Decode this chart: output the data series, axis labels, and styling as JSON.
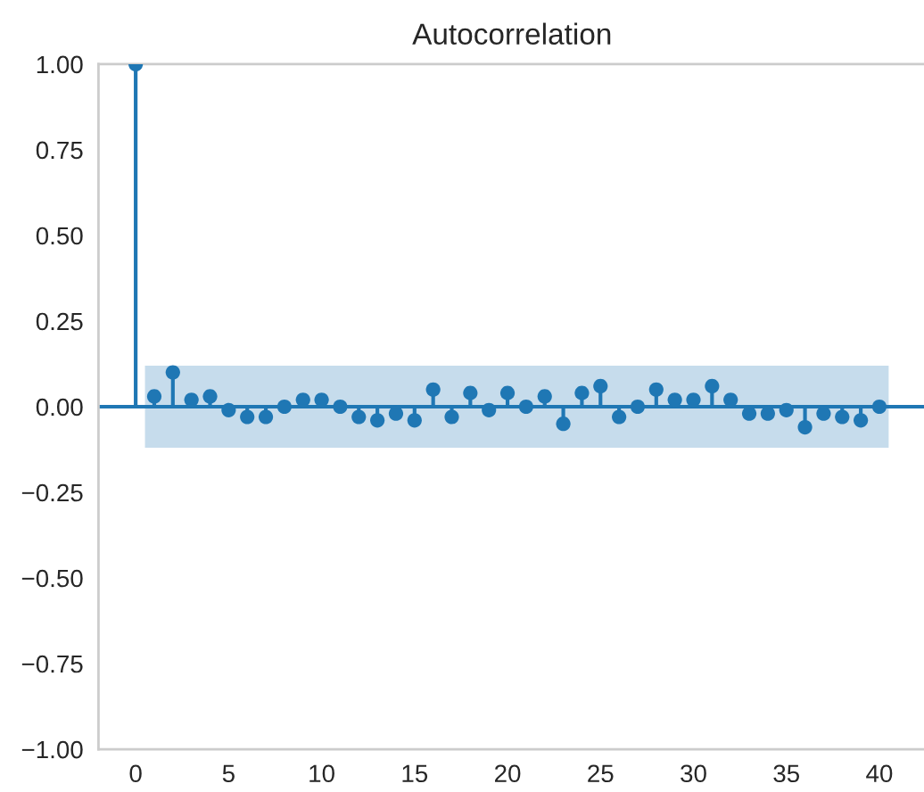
{
  "chart_data": {
    "type": "lollipop",
    "title": "Autocorrelation",
    "x": [
      0,
      1,
      2,
      3,
      4,
      5,
      6,
      7,
      8,
      9,
      10,
      11,
      12,
      13,
      14,
      15,
      16,
      17,
      18,
      19,
      20,
      21,
      22,
      23,
      24,
      25,
      26,
      27,
      28,
      29,
      30,
      31,
      32,
      33,
      34,
      35,
      36,
      37,
      38,
      39,
      40
    ],
    "series": [
      {
        "color": "#1f77b4",
        "values": [
          1.0,
          0.03,
          0.1,
          0.02,
          0.03,
          -0.01,
          -0.03,
          -0.03,
          0.0,
          0.02,
          0.02,
          0.0,
          -0.03,
          -0.04,
          -0.02,
          -0.04,
          0.05,
          -0.03,
          0.04,
          -0.01,
          0.04,
          0.0,
          0.03,
          -0.05,
          0.04,
          0.06,
          -0.03,
          0.0,
          0.05,
          0.02,
          0.02,
          0.06,
          0.02,
          -0.02,
          -0.02,
          -0.01,
          -0.06,
          -0.02,
          -0.03,
          -0.04,
          0.0
        ]
      }
    ],
    "xlim": [
      -2,
      42.5
    ],
    "xticks": [
      0,
      5,
      10,
      15,
      20,
      25,
      30,
      35,
      40
    ],
    "ylim": [
      -1,
      1
    ],
    "yticks": [
      {
        "value": -1,
        "label": "−1.00"
      },
      {
        "value": -0.75,
        "label": "−0.75"
      },
      {
        "value": -0.5,
        "label": "−0.50"
      },
      {
        "value": -0.25,
        "label": "−0.25"
      },
      {
        "value": 0,
        "label": "0.00"
      },
      {
        "value": 0.25,
        "label": "0.25"
      },
      {
        "value": 0.5,
        "label": "0.50"
      },
      {
        "value": 0.75,
        "label": "0.75"
      },
      {
        "value": 1,
        "label": "1.00"
      }
    ],
    "grid": false,
    "marker": "circle",
    "ref_lines": [
      {
        "axis": "y",
        "value": 0,
        "color": "#1f77b4"
      }
    ],
    "bands": [
      {
        "axis": "y",
        "from": -0.12,
        "to": 0.12,
        "color": "#c6dcec"
      }
    ]
  }
}
